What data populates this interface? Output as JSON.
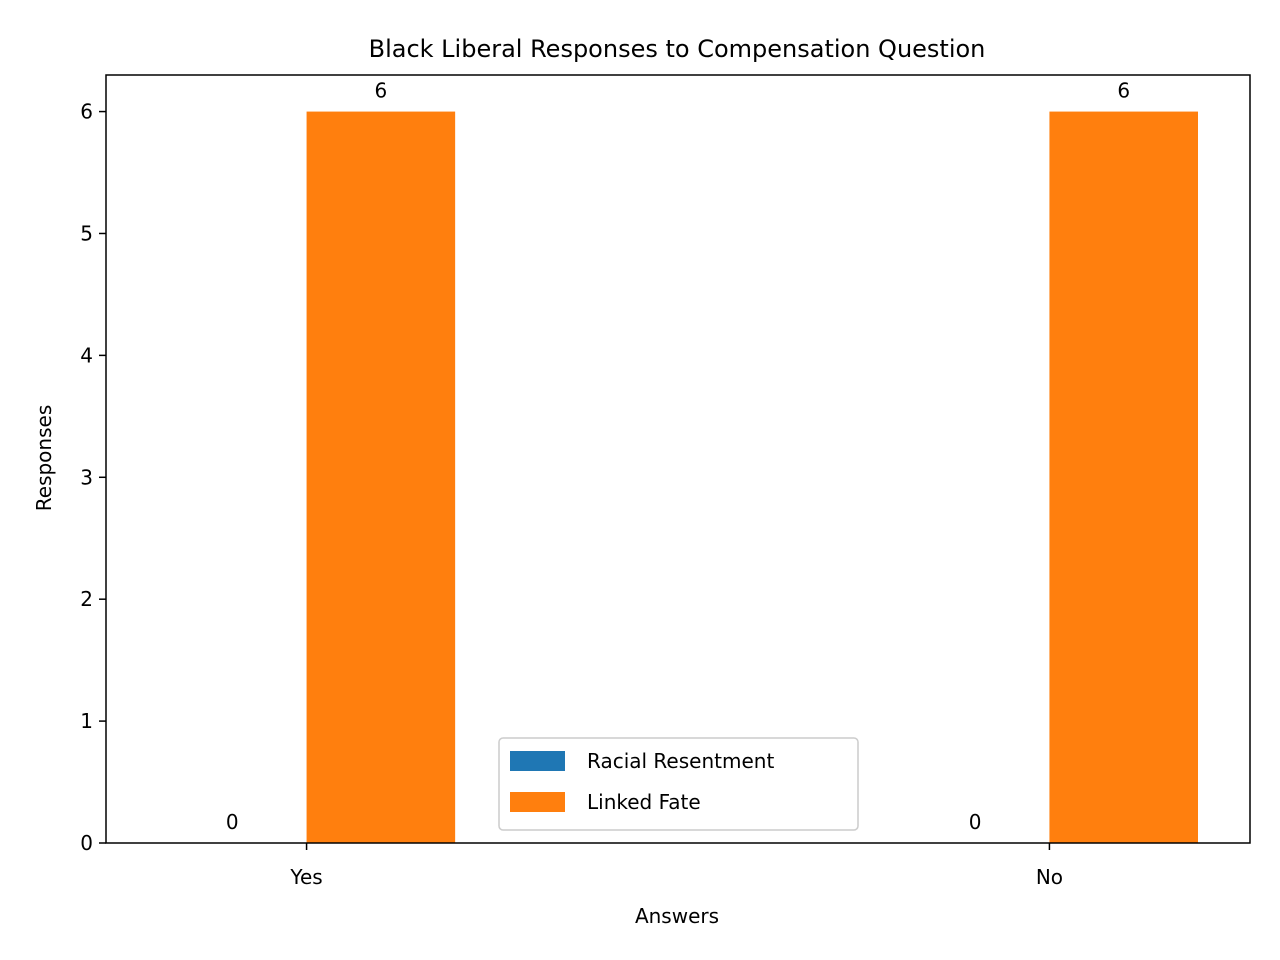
{
  "chart_data": {
    "type": "bar",
    "title": "Black Liberal Responses to Compensation Question",
    "xlabel": "Answers",
    "ylabel": "Responses",
    "categories": [
      "Yes",
      "No"
    ],
    "ylim": [
      0,
      6.3
    ],
    "yticks": [
      0,
      1,
      2,
      3,
      4,
      5,
      6
    ],
    "grid": false,
    "legend": {
      "placement": "lower-center",
      "entries": [
        "Racial Resentment",
        "Linked Fate"
      ]
    },
    "series": [
      {
        "name": "Racial Resentment",
        "color": "#1f77b4",
        "values": [
          0,
          0
        ],
        "labels": [
          "0",
          "0"
        ]
      },
      {
        "name": "Linked Fate",
        "color": "#ff7f0e",
        "values": [
          6,
          6
        ],
        "labels": [
          "6",
          "6"
        ]
      }
    ]
  }
}
